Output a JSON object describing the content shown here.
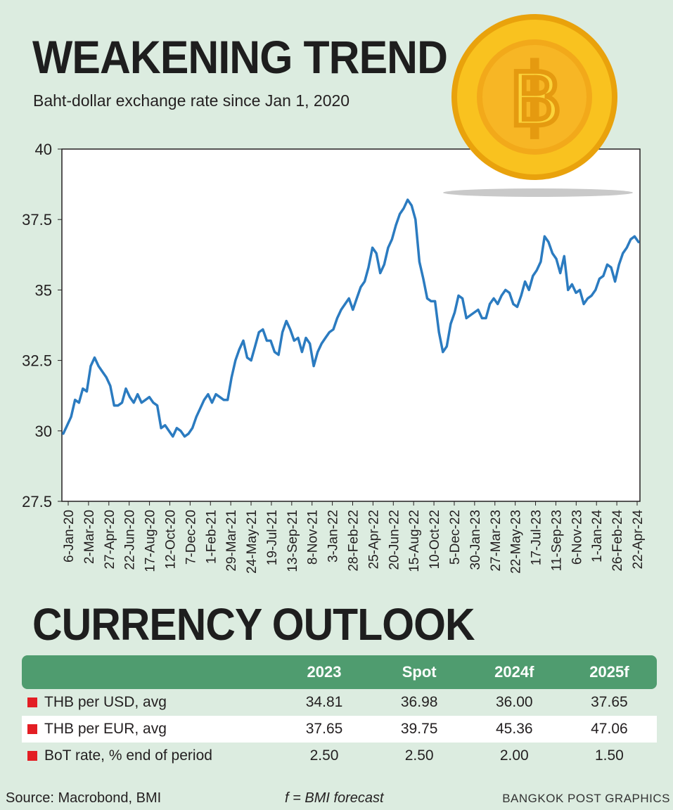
{
  "title": "WEAKENING TREND",
  "subtitle": "Baht-dollar exchange rate since Jan 1, 2020",
  "coin_symbol": "฿",
  "chart_data": {
    "type": "line",
    "title": "WEAKENING TREND",
    "subtitle": "Baht-dollar exchange rate since Jan 1, 2020",
    "ylim": [
      27.5,
      40
    ],
    "yticks": [
      "27.5",
      "30",
      "32.5",
      "35",
      "37.5",
      "40"
    ],
    "xticks": [
      "6-Jan-20",
      "2-Mar-20",
      "27-Apr-20",
      "22-Jun-20",
      "17-Aug-20",
      "12-Oct-20",
      "7-Dec-20",
      "1-Feb-21",
      "29-Mar-21",
      "24-May-21",
      "19-Jul-21",
      "13-Sep-21",
      "8-Nov-21",
      "3-Jan-22",
      "28-Feb-22",
      "25-Apr-22",
      "20-Jun-22",
      "15-Aug-22",
      "10-Oct-22",
      "5-Dec-22",
      "30-Jan-23",
      "27-Mar-23",
      "22-May-23",
      "17-Jul-23",
      "11-Sep-23",
      "6-Nov-23",
      "1-Jan-24",
      "26-Feb-24",
      "22-Apr-24"
    ],
    "grid": false,
    "color": "#2b7bc0",
    "series": [
      {
        "values": [
          29.9,
          30.2,
          30.5,
          31.1,
          31.0,
          31.5,
          31.4,
          32.3,
          32.6,
          32.3,
          32.1,
          31.9,
          31.6,
          30.9,
          30.9,
          31.0,
          31.5,
          31.2,
          31.0,
          31.3,
          31.0,
          31.1,
          31.2,
          31.0,
          30.9,
          30.1,
          30.2,
          30.0,
          29.8,
          30.1,
          30.0,
          29.8,
          29.9,
          30.1,
          30.5,
          30.8,
          31.1,
          31.3,
          31.0,
          31.3,
          31.2,
          31.1,
          31.1,
          31.9,
          32.5,
          32.9,
          33.2,
          32.6,
          32.5,
          33.0,
          33.5,
          33.6,
          33.2,
          33.2,
          32.8,
          32.7,
          33.5,
          33.9,
          33.6,
          33.2,
          33.3,
          32.8,
          33.3,
          33.1,
          32.3,
          32.8,
          33.1,
          33.3,
          33.5,
          33.6,
          34.0,
          34.3,
          34.5,
          34.7,
          34.3,
          34.7,
          35.1,
          35.3,
          35.8,
          36.5,
          36.3,
          35.6,
          35.9,
          36.5,
          36.8,
          37.3,
          37.7,
          37.9,
          38.2,
          38.0,
          37.5,
          36.0,
          35.4,
          34.7,
          34.6,
          34.6,
          33.5,
          32.8,
          33.0,
          33.8,
          34.2,
          34.8,
          34.7,
          34.0,
          34.1,
          34.2,
          34.3,
          34.0,
          34.0,
          34.5,
          34.7,
          34.5,
          34.8,
          35.0,
          34.9,
          34.5,
          34.4,
          34.8,
          35.3,
          35.0,
          35.5,
          35.7,
          36.0,
          36.9,
          36.7,
          36.3,
          36.1,
          35.6,
          36.2,
          35.0,
          35.2,
          34.9,
          35.0,
          34.5,
          34.7,
          34.8,
          35.0,
          35.4,
          35.5,
          35.9,
          35.8,
          35.3,
          35.9,
          36.3,
          36.5,
          36.8,
          36.9,
          36.7
        ]
      }
    ]
  },
  "section_title": "CURRENCY OUTLOOK",
  "table": {
    "headers": [
      "",
      "2023",
      "Spot",
      "2024f",
      "2025f"
    ],
    "rows": [
      {
        "label": "THB per USD, avg",
        "values": [
          "34.81",
          "36.98",
          "36.00",
          "37.65"
        ]
      },
      {
        "label": "THB per EUR, avg",
        "values": [
          "37.65",
          "39.75",
          "45.36",
          "47.06"
        ]
      },
      {
        "label": "BoT rate, % end of period",
        "values": [
          "2.50",
          "2.50",
          "2.00",
          "1.50"
        ]
      }
    ]
  },
  "colors": {
    "background": "#dcece0",
    "line": "#2b7bc0",
    "header": "#4f9c6f",
    "bullet": "#e31e24",
    "coin": "#f6b21a"
  },
  "footer": {
    "source": "Source: Macrobond, BMI",
    "note": "f = BMI forecast",
    "credit": "BANGKOK POST GRAPHICS"
  }
}
